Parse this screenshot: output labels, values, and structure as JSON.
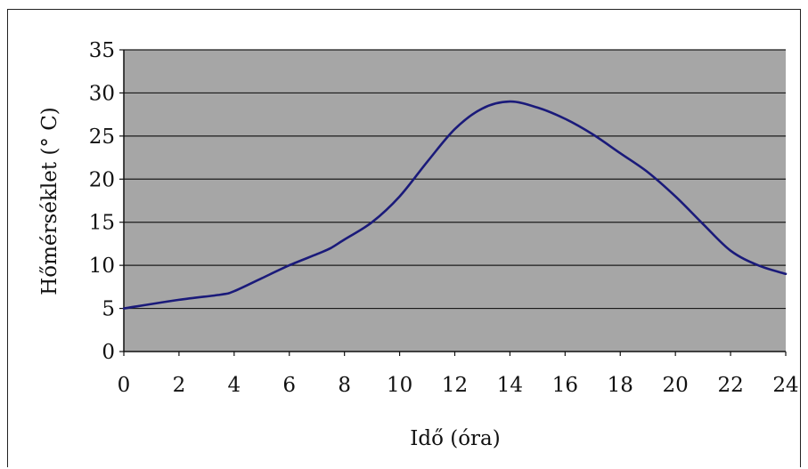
{
  "chart_data": {
    "type": "line",
    "title": "",
    "xlabel": "Idő (óra)",
    "ylabel": "Hőmérséklet (° C)",
    "xlim": [
      0,
      24
    ],
    "ylim": [
      0,
      35
    ],
    "x_ticks": [
      "0",
      "2",
      "4",
      "6",
      "8",
      "10",
      "12",
      "14",
      "16",
      "18",
      "20",
      "22",
      "24"
    ],
    "y_ticks": [
      "0",
      "5",
      "10",
      "15",
      "20",
      "25",
      "30",
      "35"
    ],
    "grid": "horizontal",
    "legend": "none",
    "series": [
      {
        "color": "#1a1a7a",
        "x": [
          0,
          2,
          3.5,
          4,
          5,
          6,
          7,
          7.5,
          8,
          9,
          10,
          11,
          12,
          13,
          14,
          15,
          16,
          17,
          18,
          19,
          20,
          21,
          22,
          23,
          24
        ],
        "y": [
          5,
          6,
          6.6,
          7,
          8.5,
          10,
          11.3,
          12,
          13,
          15,
          18,
          22,
          25.8,
          28.2,
          29,
          28.3,
          27,
          25.2,
          23,
          20.8,
          18,
          14.8,
          11.7,
          10,
          9
        ]
      }
    ]
  },
  "colors": {
    "plot_background": "#a6a6a6",
    "gridline": "#1a1a1a",
    "line": "#1a1a7a"
  }
}
